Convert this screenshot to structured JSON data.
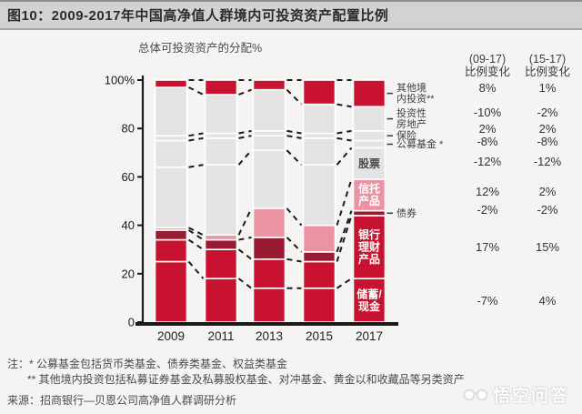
{
  "header": {
    "title": "图10：2009-2017年中国高净值人群境内可投资资产配置比例"
  },
  "chart_data": {
    "type": "bar",
    "variant": "stacked-percent",
    "subtitle": "总体可投资资产的分配%",
    "categories": [
      "2009",
      "2011",
      "2013",
      "2015",
      "2017"
    ],
    "ylim": [
      0,
      100
    ],
    "y_axis_ticks": [
      "100%",
      "80",
      "60",
      "40",
      "20",
      "0"
    ],
    "grid": false,
    "colors": {
      "crimson": "#c8122f",
      "dark_red": "#991a33",
      "pink": "#ea93a2",
      "light_gray": "#e4e2e3",
      "separator": "#ffffff",
      "dash_line": "#1b1b1b"
    },
    "series": [
      {
        "name": "储蓄/现金",
        "color": "#c8122f",
        "values": [
          25,
          18,
          14,
          14,
          18
        ],
        "inbar_label": [
          "储蓄/",
          "现金"
        ],
        "inbar_color": "#ffffff"
      },
      {
        "name": "银行理财产品",
        "color": "#c8122f",
        "values": [
          9,
          12,
          12,
          11,
          26
        ],
        "inbar_label": [
          "银行",
          "理财",
          "产品"
        ],
        "inbar_color": "#ffffff"
      },
      {
        "name": "债券",
        "color": "#991a33",
        "values": [
          4,
          4,
          9,
          4,
          2
        ],
        "outside_label": [
          "债券"
        ]
      },
      {
        "name": "信托产品",
        "color": "#ea93a2",
        "values": [
          1,
          2,
          12,
          11,
          13
        ],
        "inbar_label": [
          "信托",
          "产品"
        ],
        "inbar_color": "#ffffff"
      },
      {
        "name": "股票",
        "color": "#e4e2e3",
        "values": [
          25,
          29,
          24,
          25,
          13
        ],
        "inbar_label": [
          "股票"
        ],
        "inbar_color": "#4a4a4a"
      },
      {
        "name": "公募基金 *",
        "color": "#e4e2e3",
        "values": [
          11,
          11,
          6,
          11,
          3
        ],
        "outside_label": [
          "公募基金 *"
        ]
      },
      {
        "name": "保险",
        "color": "#e4e2e3",
        "values": [
          2,
          2,
          2,
          2,
          4
        ],
        "outside_label": [
          "保险"
        ]
      },
      {
        "name": "投资性房地产",
        "color": "#e4e2e3",
        "values": [
          20,
          16,
          17,
          12,
          10
        ],
        "outside_label": [
          "投资性",
          "房地产"
        ]
      },
      {
        "name": "其他境内投资 **",
        "color": "#c8122f",
        "values": [
          3,
          6,
          4,
          10,
          11
        ],
        "outside_label": [
          "其他境",
          "内投资**"
        ]
      }
    ]
  },
  "change_table": {
    "col1_header": [
      "(09-17)",
      "比例变化"
    ],
    "col2_header": [
      "(15-17)",
      "比例变化"
    ],
    "rows": [
      {
        "name": "其他境内投资",
        "v0917": "8%",
        "v1517": "1%"
      },
      {
        "name": "投资性房地产",
        "v0917": "-10%",
        "v1517": "-2%"
      },
      {
        "name": "保险",
        "v0917": "2%",
        "v1517": "2%"
      },
      {
        "name": "公募基金",
        "v0917": "-8%",
        "v1517": "-8%"
      },
      {
        "name": "股票",
        "v0917": "-12%",
        "v1517": "-12%"
      },
      {
        "name": "信托产品",
        "v0917": "12%",
        "v1517": "2%"
      },
      {
        "name": "债券",
        "v0917": "-2%",
        "v1517": "-2%"
      },
      {
        "name": "银行理财产品",
        "v0917": "17%",
        "v1517": "15%"
      },
      {
        "name": "储蓄/现金",
        "v0917": "-7%",
        "v1517": "4%"
      }
    ]
  },
  "notes": {
    "prefix": "注：",
    "line1": "* 公募基金包括货币类基金、债券类基金、权益类基金",
    "line2": "** 其他境内投资包括私募证券基金及私募股权基金、对冲基金、黄金以和收藏品等另类资产",
    "source": "来源：招商银行—贝恩公司高净值人群调研分析"
  },
  "watermark": {
    "text": "悟空问答"
  }
}
